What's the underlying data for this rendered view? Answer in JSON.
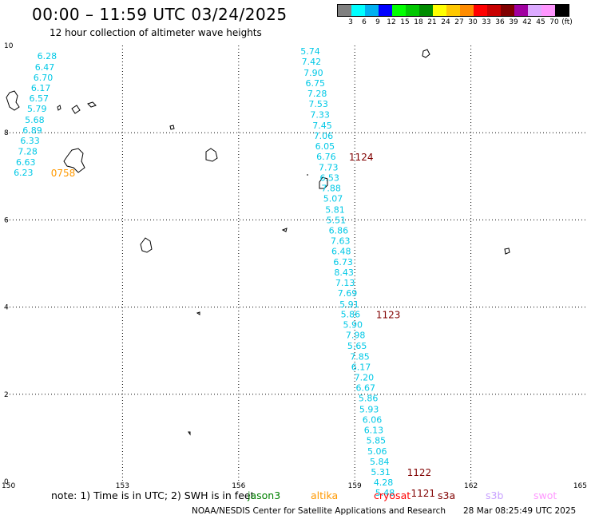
{
  "title": "00:00 – 11:59 UTC 03/24/2025",
  "subtitle": "12 hour collection of altimeter wave heights",
  "legend": {
    "unit": "(ft)",
    "colors": [
      "#808080",
      "#00ffff",
      "#00b0f0",
      "#0000ff",
      "#00ff00",
      "#00c800",
      "#008c00",
      "#ffff00",
      "#ffc800",
      "#ff8c00",
      "#ff0000",
      "#c80000",
      "#800000",
      "#a000a0",
      "#dcaaff",
      "#ff96ff",
      "#000000"
    ],
    "labels": [
      "3",
      "6",
      "9",
      "12",
      "15",
      "18",
      "21",
      "24",
      "27",
      "30",
      "33",
      "36",
      "39",
      "42",
      "45",
      "70"
    ]
  },
  "map": {
    "x_ticks": [
      "150",
      "153",
      "156",
      "159",
      "162",
      "165"
    ],
    "y_ticks": [
      "0",
      "2",
      "4",
      "6",
      "8",
      "10"
    ],
    "grid_lon": [
      153,
      156,
      159,
      162
    ],
    "grid_lat": [
      2,
      4,
      6,
      8
    ],
    "lon_range": [
      150,
      165
    ],
    "lat_range": [
      0,
      10
    ]
  },
  "track_a": {
    "color": "#00c8e6",
    "points": [
      {
        "lon": 151.05,
        "lat": 9.76,
        "v": "6.28"
      },
      {
        "lon": 150.99,
        "lat": 9.51,
        "v": "6.47"
      },
      {
        "lon": 150.95,
        "lat": 9.27,
        "v": "6.70"
      },
      {
        "lon": 150.89,
        "lat": 9.03,
        "v": "6.17"
      },
      {
        "lon": 150.84,
        "lat": 8.79,
        "v": "6.57"
      },
      {
        "lon": 150.79,
        "lat": 8.55,
        "v": "5.79"
      },
      {
        "lon": 150.73,
        "lat": 8.3,
        "v": "5.68"
      },
      {
        "lon": 150.67,
        "lat": 8.06,
        "v": "6.89"
      },
      {
        "lon": 150.61,
        "lat": 7.82,
        "v": "6.33"
      },
      {
        "lon": 150.55,
        "lat": 7.57,
        "v": "7.28"
      },
      {
        "lon": 150.5,
        "lat": 7.33,
        "v": "6.63"
      },
      {
        "lon": 150.44,
        "lat": 7.09,
        "v": "6.23"
      }
    ],
    "time": {
      "lon": 151.15,
      "lat": 7.09,
      "v": "0758",
      "color": "#ff9900"
    }
  },
  "track_b": {
    "color": "#00c8e6",
    "points": [
      {
        "lon": 157.85,
        "lat": 9.87,
        "v": "5.74"
      },
      {
        "lon": 157.88,
        "lat": 9.63,
        "v": "7.42"
      },
      {
        "lon": 157.93,
        "lat": 9.38,
        "v": "7.90"
      },
      {
        "lon": 157.98,
        "lat": 9.14,
        "v": "6.75"
      },
      {
        "lon": 158.03,
        "lat": 8.9,
        "v": "7.28"
      },
      {
        "lon": 158.06,
        "lat": 8.66,
        "v": "7.53"
      },
      {
        "lon": 158.1,
        "lat": 8.42,
        "v": "7.33"
      },
      {
        "lon": 158.16,
        "lat": 8.17,
        "v": "7.45"
      },
      {
        "lon": 158.19,
        "lat": 7.93,
        "v": "7.06"
      },
      {
        "lon": 158.23,
        "lat": 7.69,
        "v": "6.05"
      },
      {
        "lon": 158.26,
        "lat": 7.45,
        "v": "6.76"
      },
      {
        "lon": 158.32,
        "lat": 7.21,
        "v": "7.73"
      },
      {
        "lon": 158.35,
        "lat": 6.97,
        "v": "6.53"
      },
      {
        "lon": 158.39,
        "lat": 6.73,
        "v": "7.88"
      },
      {
        "lon": 158.44,
        "lat": 6.49,
        "v": "5.07"
      },
      {
        "lon": 158.49,
        "lat": 6.24,
        "v": "5.81"
      },
      {
        "lon": 158.52,
        "lat": 6.0,
        "v": "5.51"
      },
      {
        "lon": 158.58,
        "lat": 5.76,
        "v": "6.86"
      },
      {
        "lon": 158.63,
        "lat": 5.52,
        "v": "7.63"
      },
      {
        "lon": 158.65,
        "lat": 5.28,
        "v": "6.48"
      },
      {
        "lon": 158.7,
        "lat": 5.04,
        "v": "6.73"
      },
      {
        "lon": 158.72,
        "lat": 4.8,
        "v": "8.43"
      },
      {
        "lon": 158.75,
        "lat": 4.56,
        "v": "7.13"
      },
      {
        "lon": 158.81,
        "lat": 4.32,
        "v": "7.69"
      },
      {
        "lon": 158.86,
        "lat": 4.07,
        "v": "5.91"
      },
      {
        "lon": 158.89,
        "lat": 3.84,
        "v": "5.86"
      },
      {
        "lon": 158.95,
        "lat": 3.6,
        "v": "5.90"
      },
      {
        "lon": 159.02,
        "lat": 3.36,
        "v": "7.98"
      },
      {
        "lon": 159.06,
        "lat": 3.11,
        "v": "5.65"
      },
      {
        "lon": 159.13,
        "lat": 2.87,
        "v": "7.85"
      },
      {
        "lon": 159.16,
        "lat": 2.63,
        "v": "6.17"
      },
      {
        "lon": 159.24,
        "lat": 2.39,
        "v": "7.20"
      },
      {
        "lon": 159.28,
        "lat": 2.15,
        "v": "6.67"
      },
      {
        "lon": 159.35,
        "lat": 1.91,
        "v": "5.86"
      },
      {
        "lon": 159.37,
        "lat": 1.66,
        "v": "5.93"
      },
      {
        "lon": 159.45,
        "lat": 1.42,
        "v": "6.06"
      },
      {
        "lon": 159.49,
        "lat": 1.18,
        "v": "6.13"
      },
      {
        "lon": 159.55,
        "lat": 0.94,
        "v": "5.85"
      },
      {
        "lon": 159.58,
        "lat": 0.7,
        "v": "5.06"
      },
      {
        "lon": 159.64,
        "lat": 0.46,
        "v": "5.84"
      },
      {
        "lon": 159.67,
        "lat": 0.22,
        "v": "5.31"
      },
      {
        "lon": 159.74,
        "lat": -0.02,
        "v": "4.28"
      },
      {
        "lon": 159.78,
        "lat": -0.26,
        "v": "5.48"
      }
    ],
    "times": [
      {
        "lon": 158.85,
        "lat": 7.45,
        "v": "1124",
        "color": "#800000"
      },
      {
        "lon": 159.55,
        "lat": 3.84,
        "v": "1123",
        "color": "#800000"
      },
      {
        "lon": 160.35,
        "lat": 0.22,
        "v": "1122",
        "color": "#800000"
      },
      {
        "lon": 160.45,
        "lat": -0.26,
        "v": "1121",
        "color": "#800000"
      }
    ]
  },
  "note": "note: 1) Time is in UTC; 2) SWH is in feet",
  "satellites": [
    {
      "name": "jason3",
      "color": "#008000"
    },
    {
      "name": "altika",
      "color": "#ff9900"
    },
    {
      "name": "cryosat",
      "color": "#ff0000"
    },
    {
      "name": "s3a",
      "color": "#800000"
    },
    {
      "name": "s3b",
      "color": "#c8a0ff"
    },
    {
      "name": "swot",
      "color": "#ff99ff"
    }
  ],
  "credit": "NOAA/NESDIS Center for Satellite Applications and Research",
  "timestamp": "28 Mar 08:25:49 UTC 2025"
}
